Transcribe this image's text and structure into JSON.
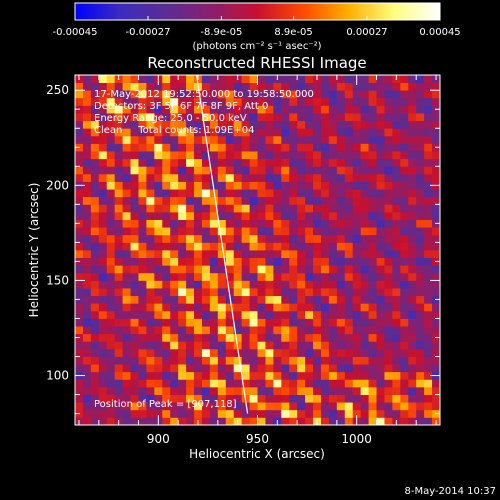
{
  "chart_data": {
    "type": "heatmap",
    "title": "Reconstructed RHESSI Image",
    "xlabel": "Heliocentric X (arcsec)",
    "ylabel": "Heliocentric Y (arcsec)",
    "xlim": [
      858,
      1042
    ],
    "ylim": [
      74,
      258
    ],
    "x_ticks": [
      900,
      950,
      1000
    ],
    "y_ticks": [
      100,
      150,
      200,
      250
    ],
    "grid": false,
    "colorbar": {
      "range": [
        -0.00045,
        0.00045
      ],
      "tick_values": [
        -0.00045,
        -0.00027,
        -8.9e-05,
        8.9e-05,
        0.00027,
        0.00045
      ],
      "tick_labels": [
        "-0.00045",
        "-0.00027",
        "-8.9e-05",
        "8.9e-05",
        "0.00027",
        "0.00045"
      ],
      "unit_label": "(photons cm⁻² s⁻¹ asec⁻²)",
      "colormap": [
        "#0000ff",
        "#3d2bbf",
        "#5a2d92",
        "#8a1f6d",
        "#c8102f",
        "#ff4a00",
        "#ffb000",
        "#ffff80",
        "#ffffff"
      ]
    },
    "annotations": [
      "17-May-2012 19:52:50.000 to 19:58:50.000",
      "Detectors: 3F 5F 6F 7F 8F 9F, Att 0",
      "Energy Range: 25.0 - 50.0 keV",
      "Clean     Total counts: 1.09E+04"
    ],
    "peak_label": "Position of Peak = [907,118]",
    "peak": [
      907,
      118
    ],
    "limb_line": {
      "x": [
        919,
        945
      ],
      "y": [
        260,
        80
      ]
    },
    "pattern": {
      "x_range": [
        858,
        1042
      ],
      "y_range": [
        74,
        258
      ],
      "pixel_arcsec": 4,
      "value_range": [
        -0.00045,
        0.00045
      ]
    }
  },
  "footer": {
    "timestamp": "8-May-2014 10:37"
  }
}
